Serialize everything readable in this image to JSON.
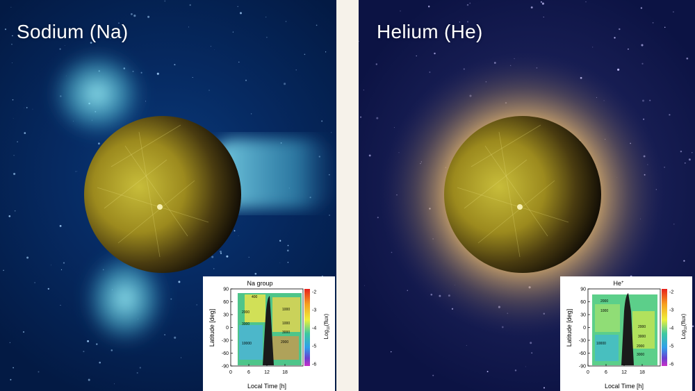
{
  "panels": [
    {
      "title": "Sodium (Na)",
      "inset": {
        "title": "Na group",
        "xlabel": "Local Time [h]",
        "ylabel": "Latitude [deg]",
        "colorbar_label": "Log",
        "colorbar_label_sub": "10",
        "colorbar_label_tail": "(flux)",
        "xticks": [
          "0",
          "6",
          "12",
          "18"
        ],
        "yticks": [
          "90",
          "60",
          "30",
          "0",
          "-30",
          "-60",
          "-90"
        ],
        "cticks": [
          "-2",
          "-3",
          "-4",
          "-5",
          "-6"
        ],
        "contour_labels": [
          "400",
          "2000",
          "1000",
          "3000",
          "1000",
          "3000",
          "2000",
          "10000"
        ]
      }
    },
    {
      "title": "Helium (He)",
      "inset": {
        "title": "He",
        "title_sup": "+",
        "xlabel": "Local Time [h]",
        "ylabel": "Latitude [deg]",
        "colorbar_label": "Log",
        "colorbar_label_sub": "10",
        "colorbar_label_tail": "(flux)",
        "xticks": [
          "0",
          "6",
          "12",
          "18"
        ],
        "yticks": [
          "90",
          "60",
          "30",
          "0",
          "-30",
          "-60",
          "-90"
        ],
        "cticks": [
          "-2",
          "-3",
          "-4",
          "-5",
          "-6"
        ],
        "contour_labels": [
          "2000",
          "1000",
          "2000",
          "3000",
          "10000",
          "2000",
          "3000"
        ]
      }
    }
  ],
  "colors": {
    "sodium_glow": "#7fe0ef",
    "helium_glow": "#d9a85a",
    "planet": "#8a7a1a"
  }
}
